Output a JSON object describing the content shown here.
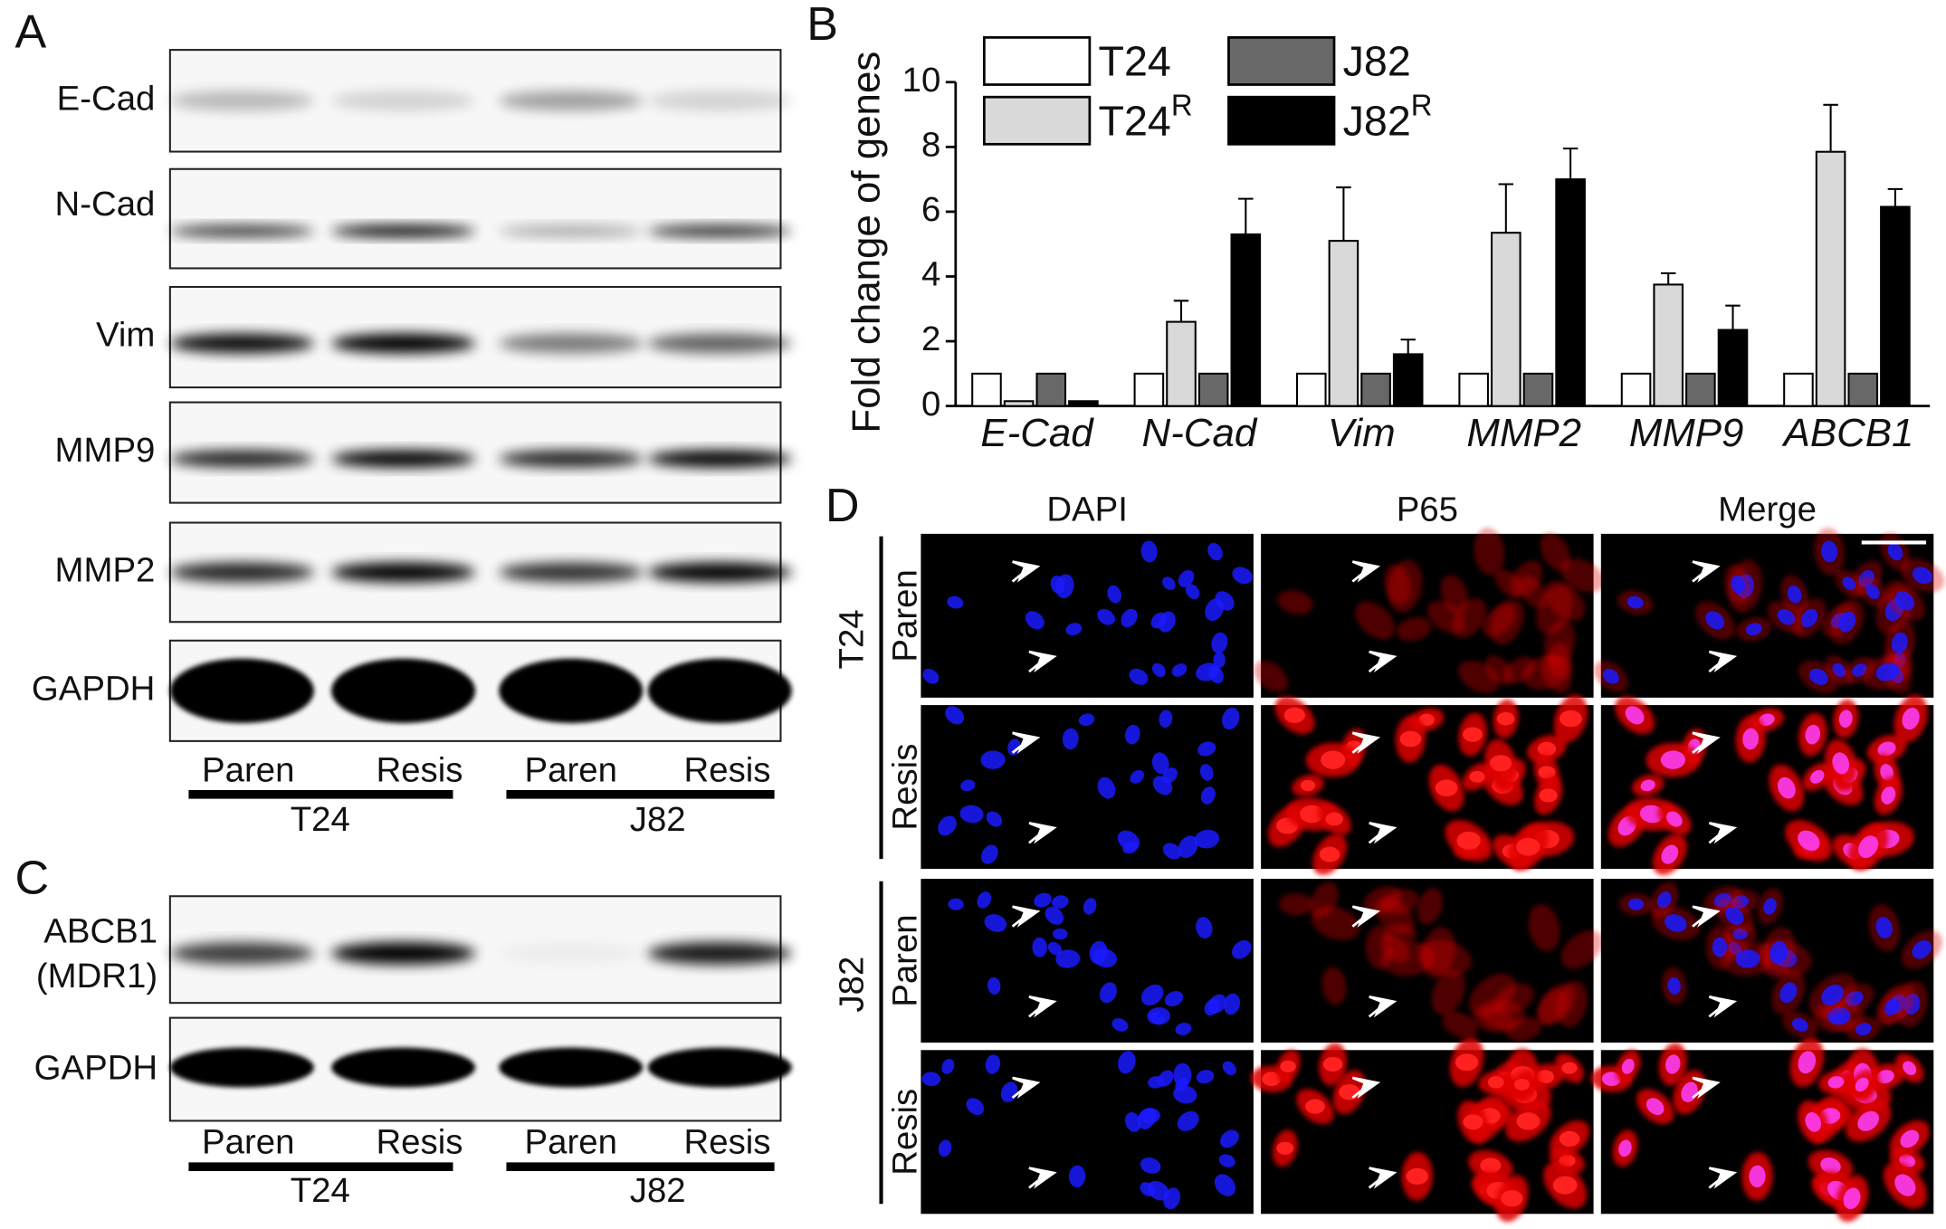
{
  "panel_labels": [
    "A",
    "B",
    "C",
    "D"
  ],
  "blot_a": {
    "rows": [
      "E-Cad",
      "N-Cad",
      "Vim",
      "MMP9",
      "MMP2",
      "GAPDH"
    ],
    "lanes": [
      "Paren",
      "Resis",
      "Paren",
      "Resis"
    ],
    "groups": [
      "T24",
      "J82"
    ]
  },
  "blot_c": {
    "rows": [
      [
        "ABCB1",
        "(MDR1)"
      ],
      [
        "GAPDH"
      ]
    ],
    "lanes": [
      "Paren",
      "Resis",
      "Paren",
      "Resis"
    ],
    "groups": [
      "T24",
      "J82"
    ]
  },
  "imaging": {
    "columns": [
      "DAPI",
      "P65",
      "Merge"
    ],
    "groups": [
      {
        "name": "T24",
        "rows": [
          "Paren",
          "Resis"
        ]
      },
      {
        "name": "J82",
        "rows": [
          "Paren",
          "Resis"
        ]
      }
    ]
  },
  "chart_data": {
    "type": "bar",
    "ylabel": "Fold change of genes",
    "categories": [
      "E-Cad",
      "N-Cad",
      "Vim",
      "MMP2",
      "MMP9",
      "ABCB1"
    ],
    "series": [
      {
        "name": "T24",
        "color": "#ffffff",
        "values": [
          1,
          1,
          1,
          1,
          1,
          1
        ],
        "errors": [
          0,
          0,
          0,
          0,
          0,
          0
        ]
      },
      {
        "name": "T24",
        "sup": "R",
        "color": "#d9d9d9",
        "values": [
          0.15,
          2.6,
          5.1,
          5.35,
          3.75,
          7.85
        ],
        "errors": [
          0,
          0.65,
          1.65,
          1.5,
          0.35,
          1.45
        ]
      },
      {
        "name": "J82",
        "color": "#686868",
        "values": [
          1,
          1,
          1,
          1,
          1,
          1
        ],
        "errors": [
          0,
          0,
          0,
          0,
          0,
          0
        ]
      },
      {
        "name": "J82",
        "sup": "R",
        "color": "#000000",
        "values": [
          0.15,
          5.3,
          1.6,
          7.0,
          2.35,
          6.15
        ],
        "errors": [
          0,
          1.1,
          0.45,
          0.95,
          0.75,
          0.55
        ]
      }
    ],
    "ylim": [
      0,
      10
    ],
    "yticks": [
      0,
      2,
      4,
      6,
      8,
      10
    ]
  }
}
